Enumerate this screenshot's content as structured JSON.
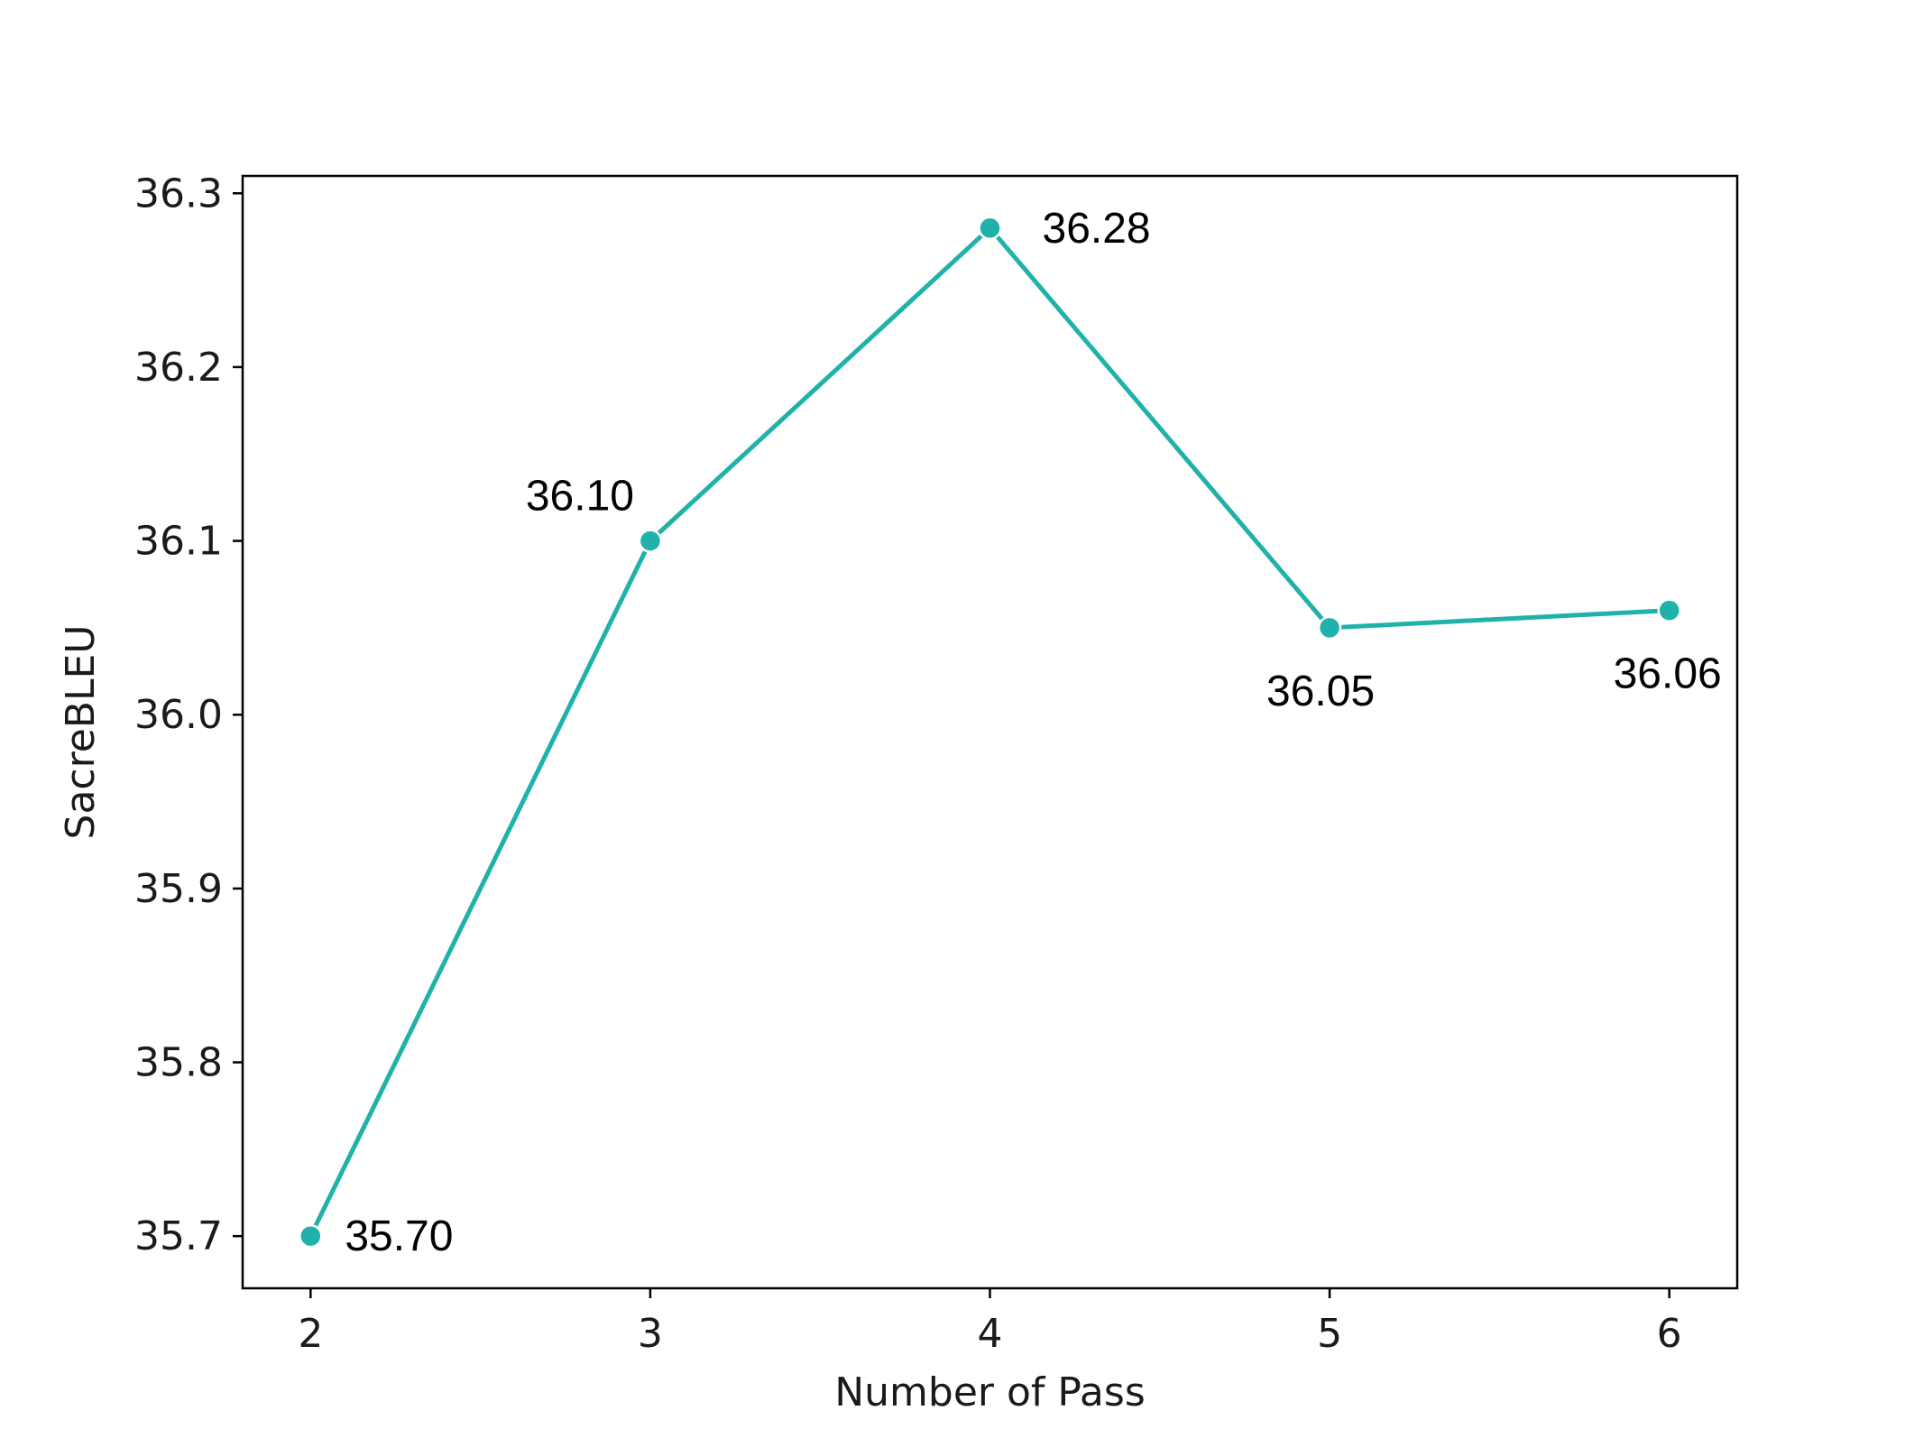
{
  "colors": {
    "line": "#20b2aa",
    "axes": "#000000",
    "text": "#1a1a1a"
  },
  "chart_data": {
    "type": "line",
    "title": "",
    "xlabel": "Number of Pass",
    "ylabel": "SacreBLEU",
    "x": [
      2,
      3,
      4,
      5,
      6
    ],
    "x_tick_labels": [
      "2",
      "3",
      "4",
      "5",
      "6"
    ],
    "xlim": [
      1.8,
      6.2
    ],
    "ylim": [
      35.67,
      36.31
    ],
    "y_ticks": [
      35.7,
      35.8,
      35.9,
      36.0,
      36.1,
      36.2,
      36.3
    ],
    "y_tick_labels": [
      "35.7",
      "35.8",
      "35.9",
      "36.0",
      "36.1",
      "36.2",
      "36.3"
    ],
    "grid": false,
    "legend": "none",
    "series": [
      {
        "values": [
          35.7,
          36.1,
          36.28,
          36.05,
          36.06
        ],
        "data_labels": [
          "35.70",
          "36.10",
          "36.28",
          "36.05",
          "36.06"
        ],
        "marker": "circle"
      }
    ]
  }
}
